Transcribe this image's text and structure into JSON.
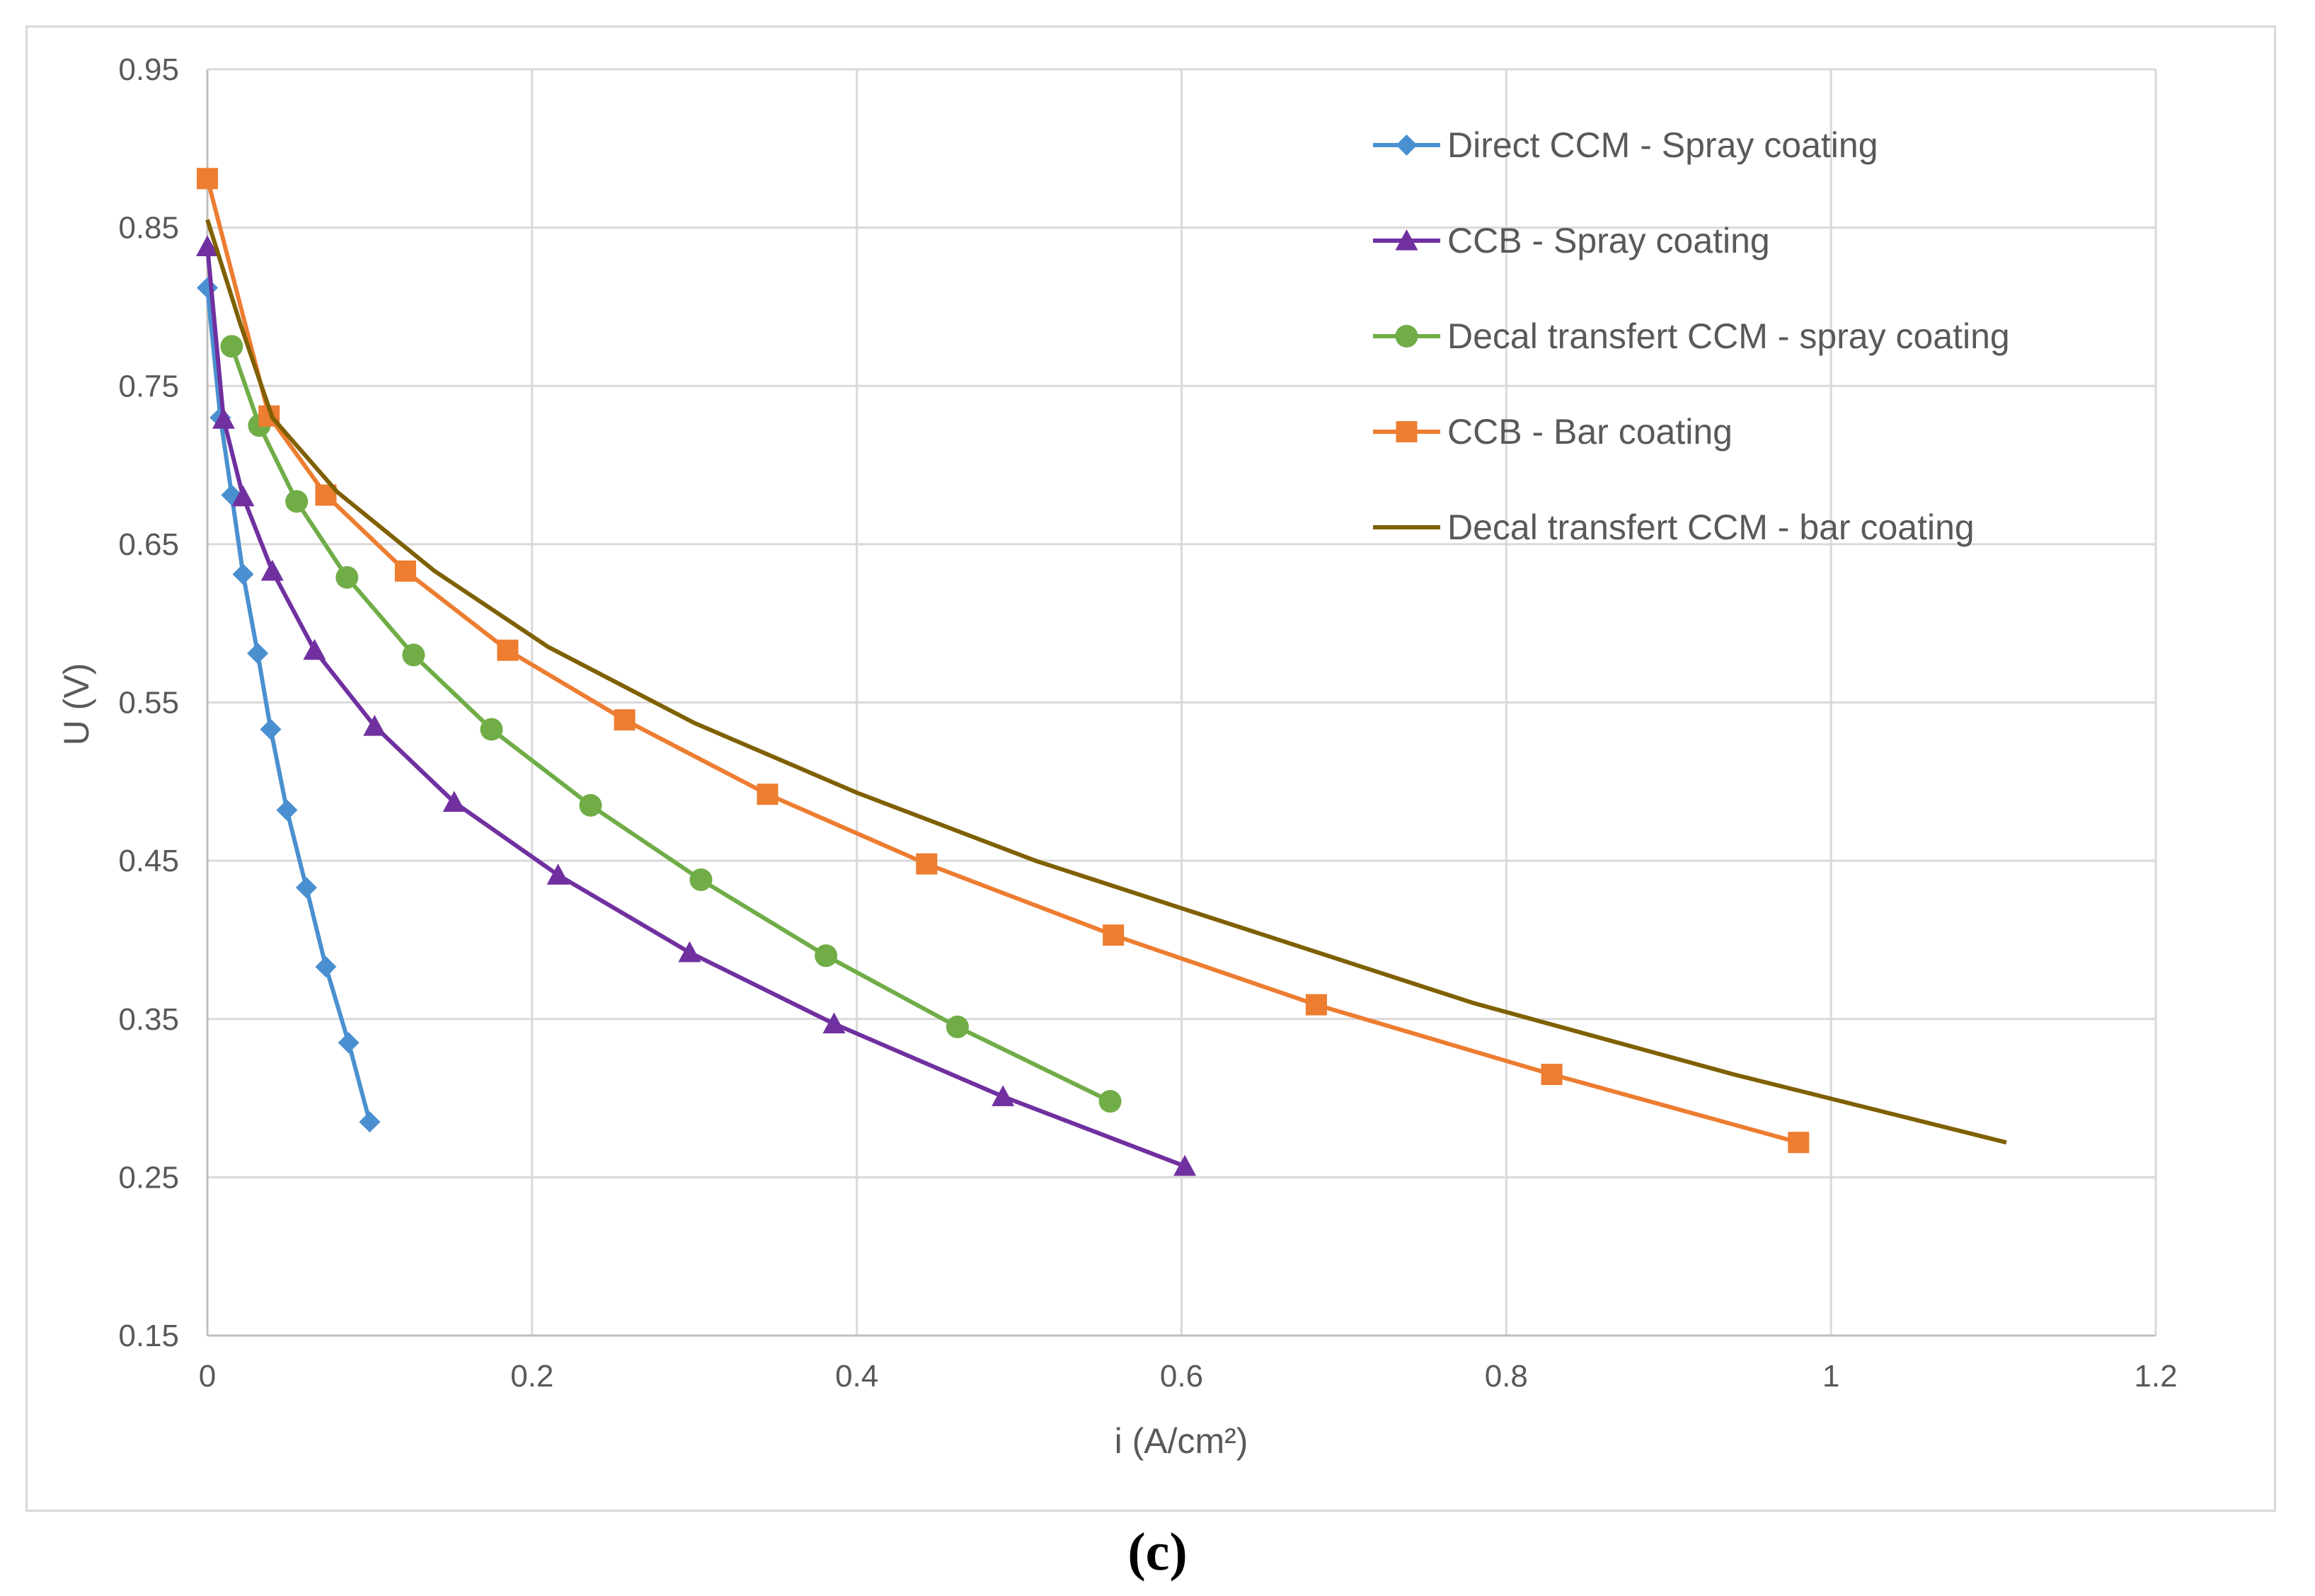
{
  "caption": "(c)",
  "chart_data": {
    "type": "line",
    "title": "",
    "xlabel": "i (A/cm²)",
    "ylabel": "U (V)",
    "xlim": [
      0,
      1.2
    ],
    "ylim": [
      0.15,
      0.95
    ],
    "xticks": [
      0,
      0.2,
      0.4,
      0.6,
      0.8,
      1,
      1.2
    ],
    "xtick_labels": [
      "0",
      "0.2",
      "0.4",
      "0.6",
      "0.8",
      "1",
      "1.2"
    ],
    "yticks": [
      0.15,
      0.25,
      0.35,
      0.45,
      0.55,
      0.65,
      0.75,
      0.85,
      0.95
    ],
    "ytick_labels": [
      "0.15",
      "0.25",
      "0.35",
      "0.45",
      "0.55",
      "0.65",
      "0.75",
      "0.85",
      "0.95"
    ],
    "grid": true,
    "legend_position": "top-right",
    "series": [
      {
        "name": "Direct CCM - Spray coating",
        "color": "#4a90d0",
        "marker": "diamond",
        "x": [
          0,
          0.008,
          0.015,
          0.022,
          0.031,
          0.039,
          0.049,
          0.061,
          0.073,
          0.087,
          0.1
        ],
        "y": [
          0.812,
          0.73,
          0.681,
          0.631,
          0.581,
          0.533,
          0.482,
          0.433,
          0.383,
          0.335,
          0.285
        ]
      },
      {
        "name": "CCB - Spray coating",
        "color": "#7030a0",
        "marker": "triangle",
        "x": [
          0,
          0.01,
          0.022,
          0.04,
          0.066,
          0.103,
          0.152,
          0.216,
          0.297,
          0.386,
          0.49,
          0.602
        ],
        "y": [
          0.838,
          0.729,
          0.68,
          0.633,
          0.583,
          0.535,
          0.487,
          0.441,
          0.392,
          0.347,
          0.301,
          0.257
        ]
      },
      {
        "name": "Decal transfert CCM - spray coating",
        "color": "#70ad47",
        "marker": "circle",
        "x": [
          0.015,
          0.032,
          0.055,
          0.086,
          0.127,
          0.175,
          0.236,
          0.304,
          0.381,
          0.462,
          0.556
        ],
        "y": [
          0.775,
          0.725,
          0.677,
          0.629,
          0.58,
          0.533,
          0.485,
          0.438,
          0.39,
          0.345,
          0.298
        ]
      },
      {
        "name": "CCB - Bar coating",
        "color": "#ed7d31",
        "marker": "square",
        "x": [
          0,
          0.038,
          0.073,
          0.122,
          0.185,
          0.257,
          0.345,
          0.443,
          0.558,
          0.683,
          0.828,
          0.98
        ],
        "y": [
          0.881,
          0.731,
          0.681,
          0.633,
          0.583,
          0.539,
          0.492,
          0.448,
          0.403,
          0.359,
          0.315,
          0.272
        ]
      },
      {
        "name": "Decal transfert CCM - bar coating",
        "color": "#7f6000",
        "marker": "none",
        "x": [
          0,
          0.02,
          0.04,
          0.08,
          0.14,
          0.21,
          0.3,
          0.4,
          0.51,
          0.63,
          0.78,
          0.94,
          1.108
        ],
        "y": [
          0.855,
          0.79,
          0.73,
          0.683,
          0.633,
          0.585,
          0.537,
          0.493,
          0.45,
          0.41,
          0.36,
          0.315,
          0.272
        ]
      }
    ]
  }
}
